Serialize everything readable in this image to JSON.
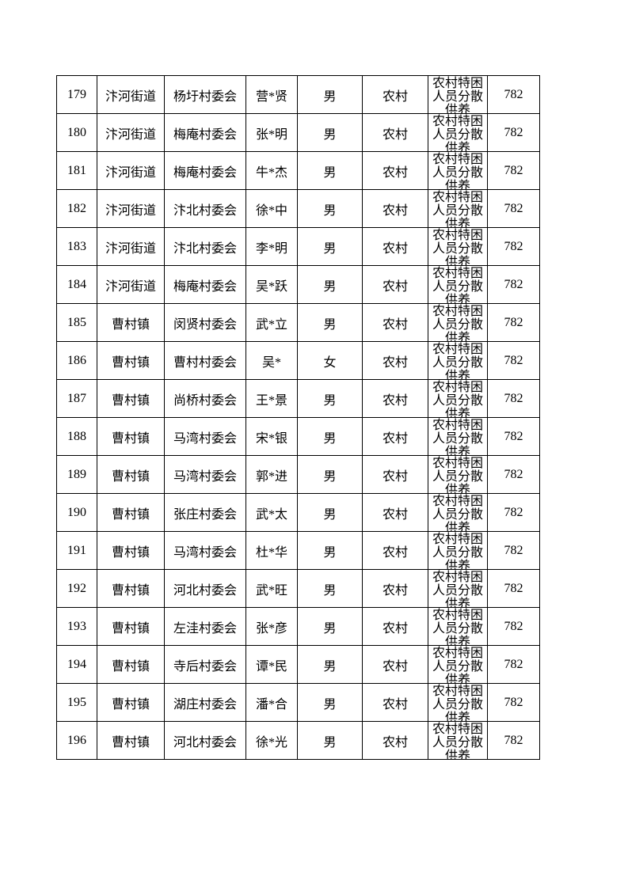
{
  "page": {
    "background_color": "#ffffff",
    "text_color": "#000000",
    "border_color": "#000000"
  },
  "table": {
    "rows": [
      {
        "no": "179",
        "district": "汴河街道",
        "village": "杨圩村委会",
        "name": "营*贤",
        "gender": "男",
        "type": "农村",
        "category": "农村特困人员分散供养",
        "amount": "782"
      },
      {
        "no": "180",
        "district": "汴河街道",
        "village": "梅庵村委会",
        "name": "张*明",
        "gender": "男",
        "type": "农村",
        "category": "农村特困人员分散供养",
        "amount": "782"
      },
      {
        "no": "181",
        "district": "汴河街道",
        "village": "梅庵村委会",
        "name": "牛*杰",
        "gender": "男",
        "type": "农村",
        "category": "农村特困人员分散供养",
        "amount": "782"
      },
      {
        "no": "182",
        "district": "汴河街道",
        "village": "汴北村委会",
        "name": "徐*中",
        "gender": "男",
        "type": "农村",
        "category": "农村特困人员分散供养",
        "amount": "782"
      },
      {
        "no": "183",
        "district": "汴河街道",
        "village": "汴北村委会",
        "name": "李*明",
        "gender": "男",
        "type": "农村",
        "category": "农村特困人员分散供养",
        "amount": "782"
      },
      {
        "no": "184",
        "district": "汴河街道",
        "village": "梅庵村委会",
        "name": "吴*跃",
        "gender": "男",
        "type": "农村",
        "category": "农村特困人员分散供养",
        "amount": "782"
      },
      {
        "no": "185",
        "district": "曹村镇",
        "village": "闵贤村委会",
        "name": "武*立",
        "gender": "男",
        "type": "农村",
        "category": "农村特困人员分散供养",
        "amount": "782"
      },
      {
        "no": "186",
        "district": "曹村镇",
        "village": "曹村村委会",
        "name": "吴*",
        "gender": "女",
        "type": "农村",
        "category": "农村特困人员分散供养",
        "amount": "782"
      },
      {
        "no": "187",
        "district": "曹村镇",
        "village": "尚桥村委会",
        "name": "王*景",
        "gender": "男",
        "type": "农村",
        "category": "农村特困人员分散供养",
        "amount": "782"
      },
      {
        "no": "188",
        "district": "曹村镇",
        "village": "马湾村委会",
        "name": "宋*银",
        "gender": "男",
        "type": "农村",
        "category": "农村特困人员分散供养",
        "amount": "782"
      },
      {
        "no": "189",
        "district": "曹村镇",
        "village": "马湾村委会",
        "name": "郭*进",
        "gender": "男",
        "type": "农村",
        "category": "农村特困人员分散供养",
        "amount": "782"
      },
      {
        "no": "190",
        "district": "曹村镇",
        "village": "张庄村委会",
        "name": "武*太",
        "gender": "男",
        "type": "农村",
        "category": "农村特困人员分散供养",
        "amount": "782"
      },
      {
        "no": "191",
        "district": "曹村镇",
        "village": "马湾村委会",
        "name": "杜*华",
        "gender": "男",
        "type": "农村",
        "category": "农村特困人员分散供养",
        "amount": "782"
      },
      {
        "no": "192",
        "district": "曹村镇",
        "village": "河北村委会",
        "name": "武*旺",
        "gender": "男",
        "type": "农村",
        "category": "农村特困人员分散供养",
        "amount": "782"
      },
      {
        "no": "193",
        "district": "曹村镇",
        "village": "左洼村委会",
        "name": "张*彦",
        "gender": "男",
        "type": "农村",
        "category": "农村特困人员分散供养",
        "amount": "782"
      },
      {
        "no": "194",
        "district": "曹村镇",
        "village": "寺后村委会",
        "name": "谭*民",
        "gender": "男",
        "type": "农村",
        "category": "农村特困人员分散供养",
        "amount": "782"
      },
      {
        "no": "195",
        "district": "曹村镇",
        "village": "湖庄村委会",
        "name": "潘*合",
        "gender": "男",
        "type": "农村",
        "category": "农村特困人员分散供养",
        "amount": "782"
      },
      {
        "no": "196",
        "district": "曹村镇",
        "village": "河北村委会",
        "name": "徐*光",
        "gender": "男",
        "type": "农村",
        "category": "农村特困人员分散供养",
        "amount": "782"
      }
    ]
  }
}
